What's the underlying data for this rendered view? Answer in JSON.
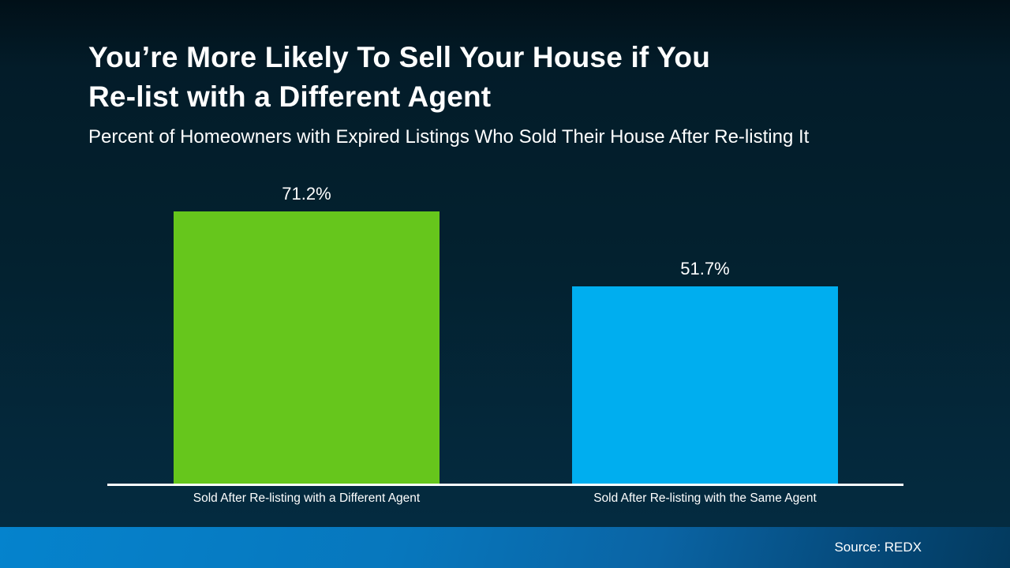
{
  "slide": {
    "title_line1": "You’re More Likely To Sell Your House if You",
    "title_line2": "Re-list with a Different Agent",
    "subtitle": "Percent of Homeowners with Expired Listings Who Sold Their House After Re-listing It",
    "footer": {
      "source_label": "Source: REDX"
    },
    "colors": {
      "background_top": "#021722",
      "background_bottom": "#042b40",
      "footer_gradient_left": "#0583cd",
      "footer_gradient_right": "#033a5e",
      "axis_line": "#ffffff",
      "text": "#ffffff",
      "bar_green": "#66C61C",
      "bar_blue": "#00AEEF"
    }
  },
  "chart_data": {
    "type": "bar",
    "title": "You’re More Likely To Sell Your House if You Re-list with a Different Agent",
    "subtitle": "Percent of Homeowners with Expired Listings Who Sold Their House After Re-listing It",
    "categories": [
      "Sold After Re-listing with a Different Agent",
      "Sold After Re-listing with the Same Agent"
    ],
    "values": [
      71.2,
      51.7
    ],
    "value_labels": [
      "71.2%",
      "51.7%"
    ],
    "bar_colors": [
      "#66C61C",
      "#00AEEF"
    ],
    "xlabel": "",
    "ylabel": "",
    "ylim": [
      0,
      100
    ],
    "grid": false,
    "legend": "none",
    "source": "Source: REDX"
  }
}
